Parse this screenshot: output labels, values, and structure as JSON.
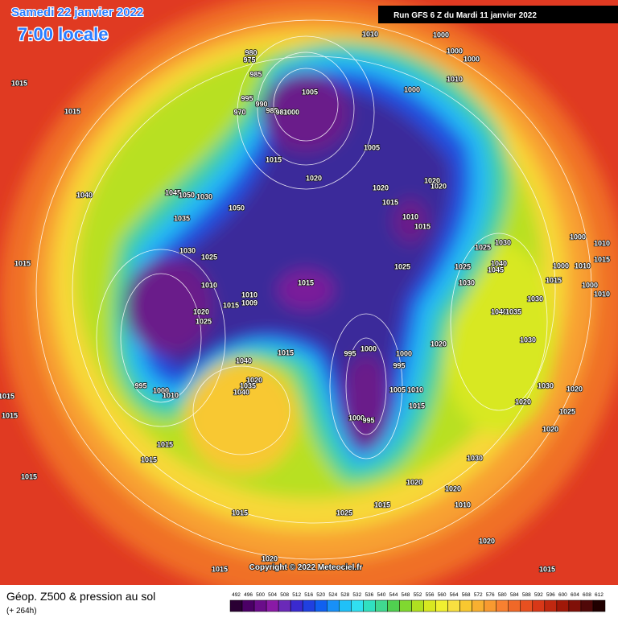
{
  "header": {
    "date": "Samedi 22 janvier 2022",
    "time": "7:00 locale",
    "run": "Run GFS 6 Z du Mardi 11 janvier 2022"
  },
  "copyright": "Copyright © 2022 Meteociel.fr",
  "legend": {
    "title": "Géop. Z500 & pression au sol",
    "subtitle": "(+ 264h)",
    "values": [
      492,
      496,
      500,
      504,
      508,
      512,
      516,
      520,
      524,
      528,
      532,
      536,
      540,
      544,
      548,
      552,
      556,
      560,
      564,
      568,
      572,
      576,
      580,
      584,
      588,
      592,
      596,
      600,
      604,
      608,
      612
    ],
    "colors": [
      "#2a0033",
      "#4b0066",
      "#6a0d8a",
      "#8a1aa6",
      "#6a2ab8",
      "#3a2ad0",
      "#2040e0",
      "#1060f0",
      "#1890f8",
      "#20c0f8",
      "#30e0f0",
      "#30e0c0",
      "#40d890",
      "#50d050",
      "#80d830",
      "#b0e020",
      "#d8e820",
      "#f0f030",
      "#f8e040",
      "#f8c830",
      "#f8b030",
      "#f89a30",
      "#f88030",
      "#f06828",
      "#e85020",
      "#d83818",
      "#c02810",
      "#a01808",
      "#801008",
      "#500808",
      "#200000"
    ]
  },
  "isobar_labels": [
    1010,
    1000,
    1000,
    1000,
    1015,
    1015,
    980,
    975,
    985,
    995,
    990,
    985,
    980,
    1000,
    970,
    1005,
    1010,
    1000,
    1005,
    1015,
    1020,
    1020,
    1020,
    1020,
    1015,
    1010,
    1015,
    1040,
    1045,
    1050,
    1030,
    1050,
    1035,
    1030,
    1025,
    1030,
    1040,
    1045,
    1025,
    1025,
    1015,
    1015,
    1030,
    1015,
    1000,
    1010,
    1015,
    1000,
    1010,
    1000,
    1010,
    1010,
    1010,
    1009,
    1015,
    1020,
    1025,
    1040,
    1035,
    1030,
    1030,
    1020,
    995,
    1000,
    1000,
    995,
    1015,
    1040,
    1020,
    1035,
    1040,
    995,
    1000,
    1010,
    1005,
    1010,
    1015,
    1030,
    1020,
    1020,
    1015,
    1015,
    1000,
    995,
    1025,
    1020,
    1015,
    1015,
    1030,
    1015,
    1020,
    1020,
    1015,
    1025,
    1010,
    1015,
    1025,
    1020,
    1020,
    1015,
    1015
  ]
}
